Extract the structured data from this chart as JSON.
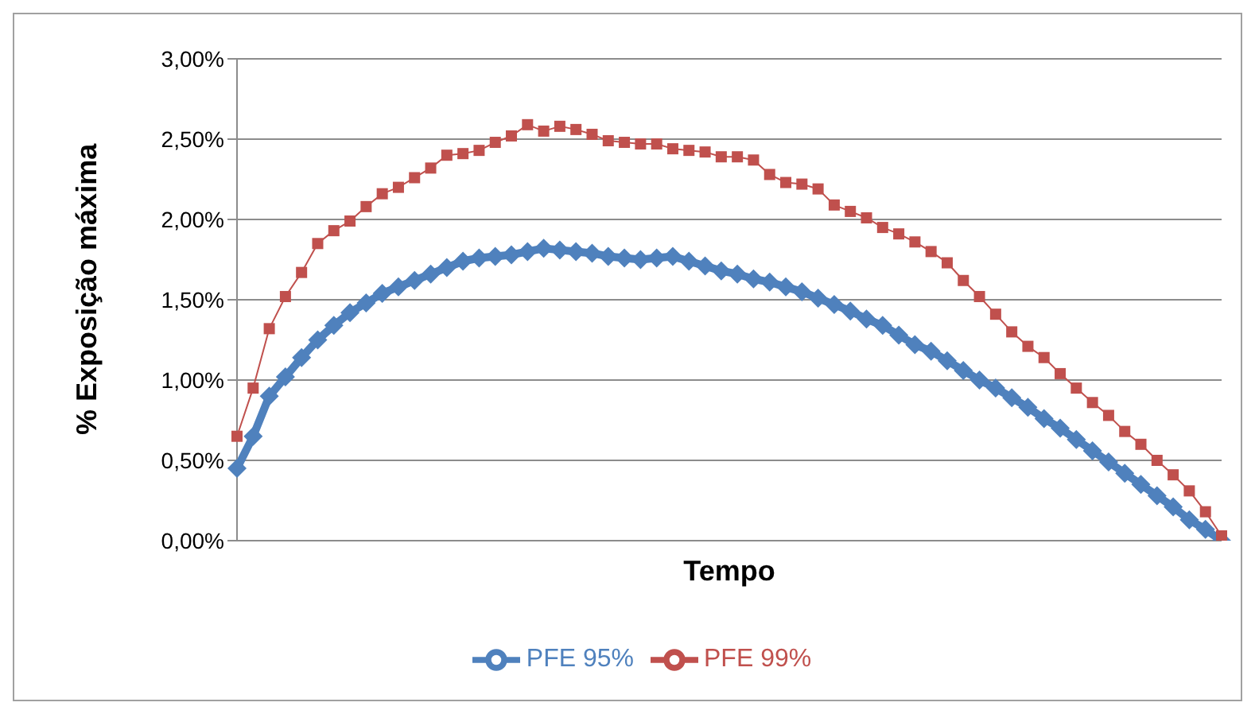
{
  "chart_data": {
    "type": "line",
    "xlabel": "Tempo",
    "ylabel": "% Exposição máxima",
    "categories": [
      null,
      null,
      null,
      null,
      null,
      null,
      null,
      null,
      null,
      null,
      null,
      null,
      null,
      null,
      null,
      null,
      null,
      null,
      null,
      null,
      null,
      null,
      null,
      null,
      null,
      null,
      null,
      null,
      null,
      null,
      null,
      null,
      null,
      null,
      null,
      null,
      null,
      null,
      null,
      null,
      null,
      null,
      null,
      null,
      null,
      null,
      null,
      null,
      null,
      null,
      null,
      null,
      null,
      null,
      null,
      null,
      null,
      null,
      null,
      null,
      null,
      null
    ],
    "series": [
      {
        "name": "PFE 95%",
        "color": "#4f81bd",
        "marker": "diamond",
        "values": [
          0.45,
          0.65,
          0.9,
          1.02,
          1.14,
          1.25,
          1.34,
          1.42,
          1.48,
          1.54,
          1.58,
          1.62,
          1.66,
          1.7,
          1.74,
          1.76,
          1.77,
          1.78,
          1.8,
          1.82,
          1.81,
          1.8,
          1.79,
          1.77,
          1.76,
          1.75,
          1.76,
          1.77,
          1.74,
          1.71,
          1.68,
          1.66,
          1.63,
          1.61,
          1.58,
          1.55,
          1.51,
          1.47,
          1.43,
          1.38,
          1.34,
          1.28,
          1.22,
          1.18,
          1.12,
          1.06,
          1.0,
          0.95,
          0.89,
          0.83,
          0.76,
          0.7,
          0.63,
          0.56,
          0.49,
          0.42,
          0.35,
          0.28,
          0.21,
          0.13,
          0.07,
          0.0
        ]
      },
      {
        "name": "PFE 99%",
        "color": "#c0504d",
        "marker": "square",
        "values": [
          0.65,
          0.95,
          1.32,
          1.52,
          1.67,
          1.85,
          1.93,
          1.99,
          2.08,
          2.16,
          2.2,
          2.26,
          2.32,
          2.4,
          2.41,
          2.43,
          2.48,
          2.52,
          2.59,
          2.55,
          2.58,
          2.56,
          2.53,
          2.49,
          2.48,
          2.47,
          2.47,
          2.44,
          2.43,
          2.42,
          2.39,
          2.39,
          2.37,
          2.28,
          2.23,
          2.22,
          2.19,
          2.09,
          2.05,
          2.01,
          1.95,
          1.91,
          1.86,
          1.8,
          1.73,
          1.62,
          1.52,
          1.41,
          1.3,
          1.21,
          1.14,
          1.04,
          0.95,
          0.86,
          0.78,
          0.68,
          0.6,
          0.5,
          0.41,
          0.31,
          0.18,
          0.03
        ]
      }
    ],
    "ylim": [
      0,
      3
    ],
    "yticks": [
      {
        "value": 0,
        "label": "0,00%"
      },
      {
        "value": 0.5,
        "label": "0,50%"
      },
      {
        "value": 1,
        "label": "1,00%"
      },
      {
        "value": 1.5,
        "label": "1,50%"
      },
      {
        "value": 2,
        "label": "2,00%"
      },
      {
        "value": 2.5,
        "label": "2,50%"
      },
      {
        "value": 3,
        "label": "3,00%"
      }
    ],
    "grid": "y",
    "legend": "bottom"
  }
}
